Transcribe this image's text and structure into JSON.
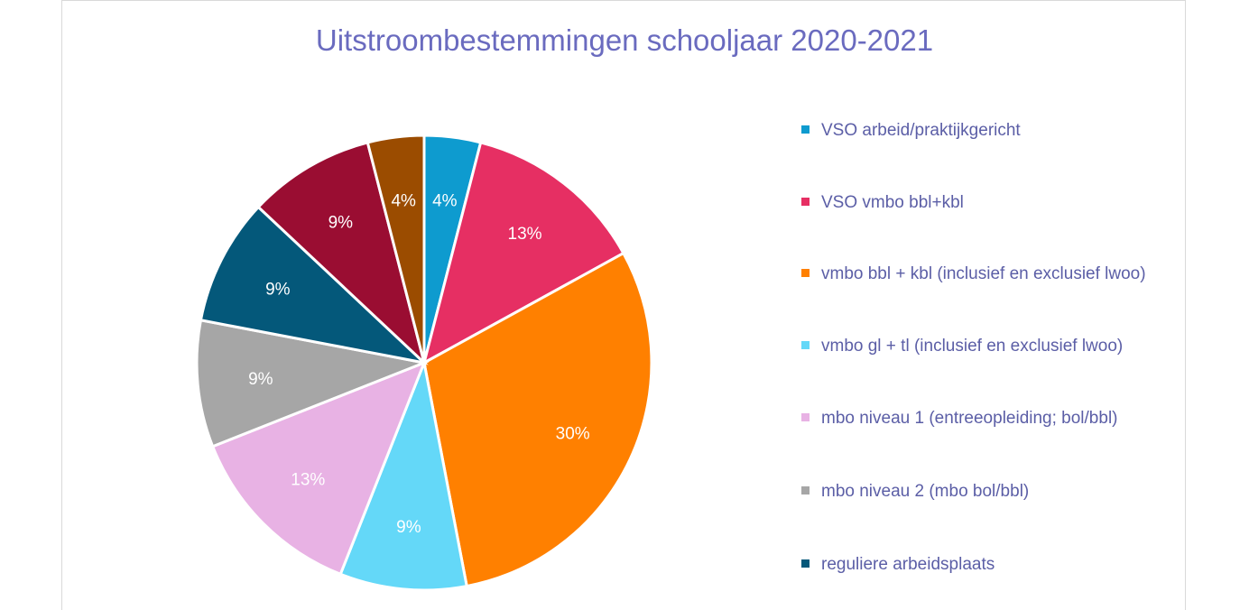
{
  "chart_data": {
    "type": "pie",
    "title": "Uitstroombestemmingen schooljaar 2020-2021",
    "legend_position": "right",
    "slices": [
      {
        "name": "VSO arbeid/praktijkgericht",
        "value": 4,
        "label": "4%",
        "color": "#0e9bcf"
      },
      {
        "name": "VSO vmbo bbl+kbl",
        "value": 13,
        "label": "13%",
        "color": "#e62f63"
      },
      {
        "name": "vmbo bbl + kbl (inclusief en exclusief lwoo)",
        "value": 30,
        "label": "30%",
        "color": "#ff8000"
      },
      {
        "name": "vmbo gl + tl (inclusief en exclusief lwoo)",
        "value": 9,
        "label": "9%",
        "color": "#64d8f8"
      },
      {
        "name": "mbo niveau 1 (entreeopleiding; bol/bbl)",
        "value": 13,
        "label": "13%",
        "color": "#e8b2e4"
      },
      {
        "name": "mbo niveau 2 (mbo bol/bbl)",
        "value": 9,
        "label": "9%",
        "color": "#a6a6a6"
      },
      {
        "name": "reguliere arbeidsplaats",
        "value": 9,
        "label": "9%",
        "color": "#04587a"
      },
      {
        "name": "",
        "value": 9,
        "label": "9%",
        "color": "#9a0d32"
      },
      {
        "name": "",
        "value": 4,
        "label": "4%",
        "color": "#9b4c00"
      }
    ]
  }
}
